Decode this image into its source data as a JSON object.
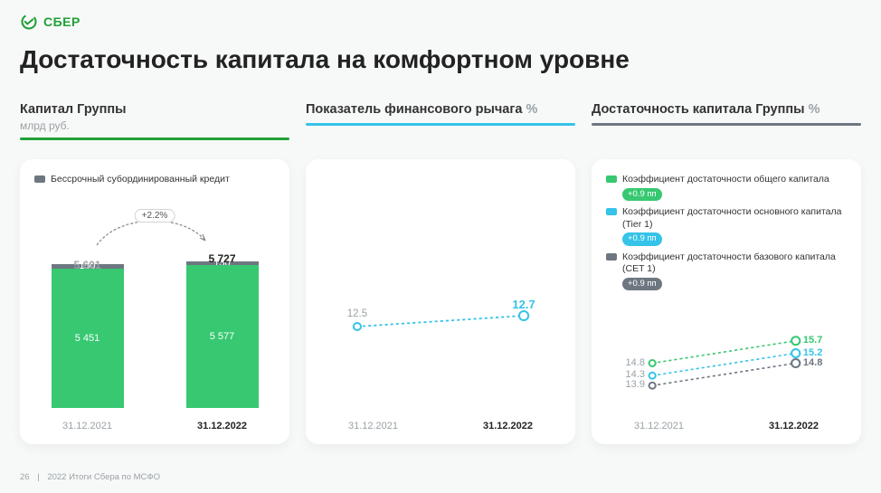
{
  "brand": {
    "name": "СБЕР",
    "logo_color": "#21a038"
  },
  "title": "Достаточность капитала на комфортном уровне",
  "footer": {
    "page": "26",
    "text": "2022 Итоги Сбера по МСФО"
  },
  "dates": {
    "start": "31.12.2021",
    "end": "31.12.2022"
  },
  "colors": {
    "green": "#37c871",
    "green_accent": "#21a038",
    "gray": "#6e7781",
    "gray_light": "#9aa1a5",
    "cyan": "#35c3e8",
    "dark": "#5b6770",
    "bg": "#f7f9f8",
    "card": "#ffffff"
  },
  "panel1": {
    "title": "Капитал Группы",
    "subtitle": "млрд руб.",
    "underline": "#21a038",
    "legend": "Бессрочный субординированный кредит",
    "legend_color": "#6e7781",
    "delta": "+2.2%",
    "bars": {
      "categories": [
        "31.12.2021",
        "31.12.2022"
      ],
      "totals": [
        5601,
        5727
      ],
      "total_labels": [
        "5 601",
        "5 727"
      ],
      "segments": [
        {
          "name": "base",
          "color": "#37c871",
          "values": [
            5451,
            5577
          ],
          "labels": [
            "5 451",
            "5 577"
          ]
        },
        {
          "name": "sub",
          "color": "#6e7781",
          "values": [
            150,
            150
          ],
          "labels": [
            "150",
            "150"
          ]
        }
      ],
      "ymax": 6000,
      "total_colors": [
        "#9aa1a5",
        "#222"
      ]
    }
  },
  "panel2": {
    "title": "Показатель финансового рычага",
    "subtitle": "%",
    "underline": "#35c3e8",
    "series": {
      "color": "#35c3e8",
      "values": [
        12.5,
        12.7
      ],
      "labels": [
        "12.5",
        "12.7"
      ],
      "label_colors": [
        "#9aa1a5",
        "#35c3e8"
      ]
    },
    "ymin": 11,
    "ymax": 14
  },
  "panel3": {
    "title": "Достаточность капитала Группы",
    "subtitle": "%",
    "underline": "#6e7781",
    "legend": [
      {
        "label": "Коэффициент достаточности общего капитала",
        "pill": "+0.9 пп",
        "color": "#37c871"
      },
      {
        "label": "Коэффициент достаточности основного капитала (Tier 1)",
        "pill": "+0.9 пп",
        "color": "#35c3e8"
      },
      {
        "label": "Коэффициент достаточности базового капитала (CET 1)",
        "pill": "+0.9 пп",
        "color": "#6e7781"
      }
    ],
    "series": [
      {
        "name": "total",
        "color": "#37c871",
        "values": [
          14.8,
          15.7
        ],
        "labels": [
          "14.8",
          "15.7"
        ]
      },
      {
        "name": "tier1",
        "color": "#35c3e8",
        "values": [
          14.3,
          15.2
        ],
        "labels": [
          "14.3",
          "15.2"
        ]
      },
      {
        "name": "cet1",
        "color": "#6e7781",
        "values": [
          13.9,
          14.8
        ],
        "labels": [
          "13.9",
          "14.8"
        ]
      }
    ],
    "ymin": 13,
    "ymax": 17,
    "label_left_color": "#9aa1a5"
  }
}
